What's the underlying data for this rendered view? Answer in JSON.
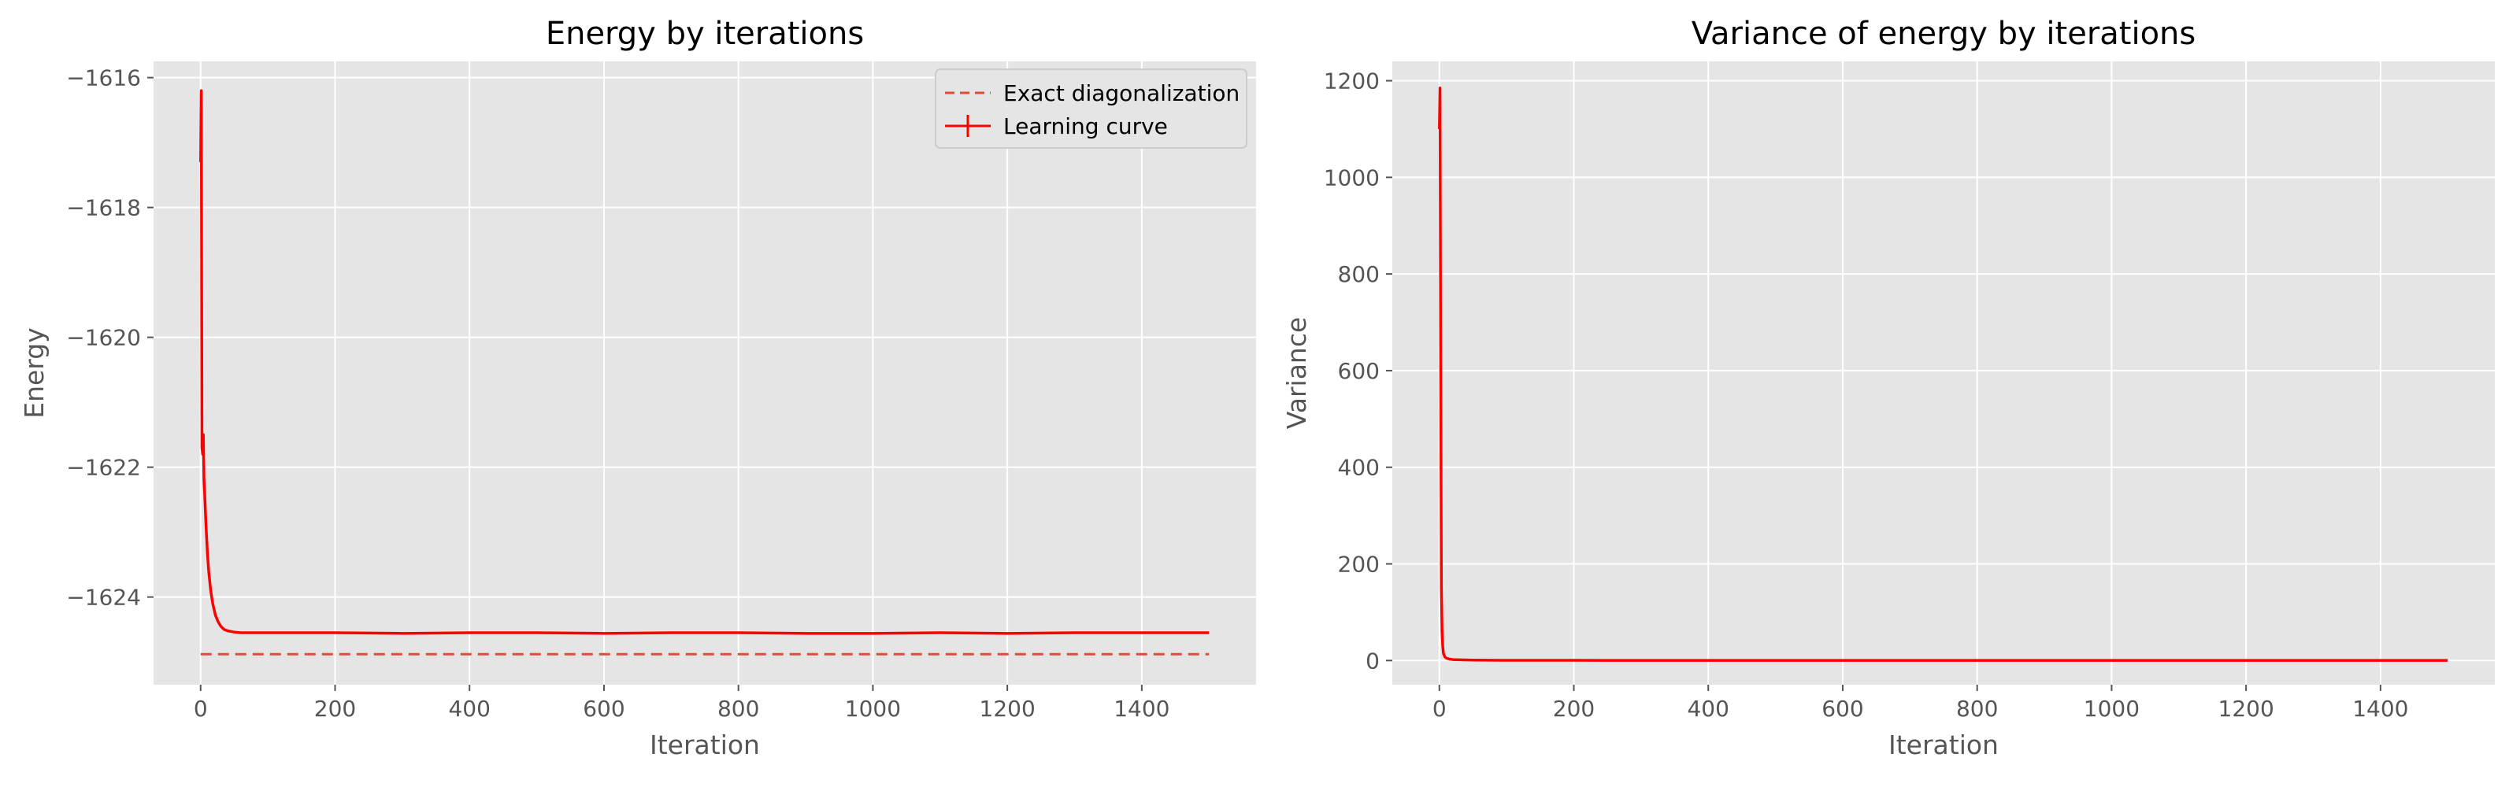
{
  "chart_data": [
    {
      "type": "line",
      "title": "Energy by iterations",
      "xlabel": "Iteration",
      "ylabel": "Energy",
      "xlim": [
        -70,
        1570
      ],
      "ylim": [
        -1625.35,
        -1615.75
      ],
      "xticks": [
        0,
        200,
        400,
        600,
        800,
        1000,
        1200,
        1400
      ],
      "yticks": [
        -1616,
        -1618,
        -1620,
        -1622,
        -1624
      ],
      "ytick_labels": [
        "−1616",
        "−1618",
        "−1620",
        "−1622",
        "−1624"
      ],
      "grid": true,
      "legend": {
        "placement": "top-right",
        "entries": [
          "Exact diagonalization",
          "Learning curve"
        ]
      },
      "series": [
        {
          "name": "Exact diagonalization",
          "style": "dashed",
          "color": "#e24a33",
          "x": [
            0,
            1500
          ],
          "y": [
            -1624.88,
            -1624.88
          ]
        },
        {
          "name": "Learning curve",
          "style": "solid",
          "color": "#ff0000",
          "x": [
            0,
            1,
            2,
            3,
            4,
            5,
            6,
            8,
            10,
            12,
            15,
            18,
            22,
            26,
            30,
            35,
            40,
            50,
            60,
            80,
            100,
            150,
            200,
            300,
            400,
            500,
            600,
            700,
            800,
            900,
            1000,
            1100,
            1200,
            1300,
            1400,
            1500
          ],
          "y": [
            -1617.3,
            -1616.2,
            -1621.7,
            -1621.8,
            -1621.5,
            -1622.2,
            -1622.4,
            -1622.9,
            -1623.3,
            -1623.6,
            -1623.9,
            -1624.1,
            -1624.28,
            -1624.38,
            -1624.45,
            -1624.5,
            -1624.52,
            -1624.54,
            -1624.55,
            -1624.55,
            -1624.55,
            -1624.55,
            -1624.55,
            -1624.56,
            -1624.55,
            -1624.55,
            -1624.56,
            -1624.55,
            -1624.55,
            -1624.56,
            -1624.56,
            -1624.55,
            -1624.56,
            -1624.55,
            -1624.55,
            -1624.55
          ]
        }
      ]
    },
    {
      "type": "line",
      "title": "Variance of energy by iterations",
      "xlabel": "Iteration",
      "ylabel": "Variance",
      "xlim": [
        -70,
        1570
      ],
      "ylim": [
        -50,
        1240
      ],
      "xticks": [
        0,
        200,
        400,
        600,
        800,
        1000,
        1200,
        1400
      ],
      "yticks": [
        0,
        200,
        400,
        600,
        800,
        1000,
        1200
      ],
      "grid": true,
      "series": [
        {
          "color": "#ff0000",
          "x": [
            0,
            1,
            2,
            3,
            4,
            5,
            6,
            8,
            10,
            15,
            20,
            30,
            50,
            100,
            200,
            400,
            600,
            800,
            1000,
            1200,
            1400,
            1500
          ],
          "y": [
            1100,
            1185,
            600,
            150,
            60,
            30,
            15,
            8,
            5,
            3,
            2,
            1.5,
            1,
            0.5,
            0.4,
            0.3,
            0.3,
            0.3,
            0.3,
            0.3,
            0.3,
            0.3
          ]
        }
      ]
    }
  ]
}
